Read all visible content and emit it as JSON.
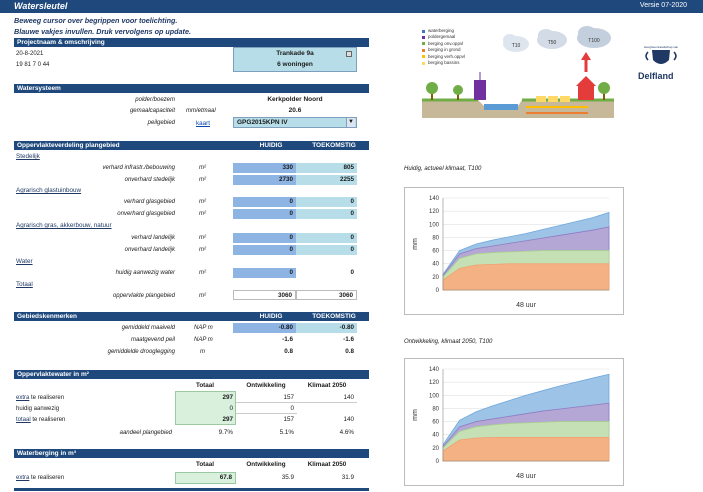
{
  "header": {
    "title": "Watersleutel",
    "version": "Versie 07-2020"
  },
  "instructions": [
    "Beweeg cursor over begrippen voor toelichting.",
    "Blauwe vakjes invullen. Druk vervolgens op update."
  ],
  "project": {
    "section": "Projectnaam & omschrijving",
    "date": "20-8-2021",
    "code": "19 81 7 0 44",
    "name": "Trankade 9a",
    "homes": "6 woningen"
  },
  "watersysteem": {
    "section": "Watersysteem",
    "polder_label": "polder/boezem",
    "polder_value": "Kerkpolder Noord",
    "gemaal_label": "gemaalcapaciteit",
    "gemaal_unit": "mm/etmaal",
    "gemaal_value": "20.6",
    "peil_label": "peilgebied",
    "kaart": "kaart",
    "peil_value": "GPG2015KPN IV"
  },
  "opp": {
    "section": "Oppervlakteverdeling plangebied",
    "col1": "HUIDIG",
    "col2": "TOEKOMSTIG",
    "stedelijk": "Stedelijk",
    "r1": {
      "label": "verhard infrastr./bebouwing",
      "unit": "m²",
      "h": "330",
      "t": "805"
    },
    "r2": {
      "label": "onverhard stedelijk",
      "unit": "m²",
      "h": "2730",
      "t": "2255"
    },
    "agr1": "Agrarisch glastuinbouw",
    "r3": {
      "label": "verhard glasgebied",
      "unit": "m²",
      "h": "0",
      "t": "0"
    },
    "r4": {
      "label": "onverhard glasgebied",
      "unit": "m²",
      "h": "0",
      "t": "0"
    },
    "agr2": "Agrarisch gras, akkerbouw, natuur",
    "r5": {
      "label": "verhard landelijk",
      "unit": "m²",
      "h": "0",
      "t": "0"
    },
    "r6": {
      "label": "onverhard landelijk",
      "unit": "m²",
      "h": "0",
      "t": "0"
    },
    "water": "Water",
    "r7": {
      "label": "huidig aanwezig water",
      "unit": "m²",
      "h": "0",
      "t": "0"
    },
    "totaal": "Totaal",
    "r8": {
      "label": "oppervlakte plangebied",
      "unit": "m²",
      "h": "3060",
      "t": "3060"
    }
  },
  "gebied": {
    "section": "Gebiedskenmerken",
    "col1": "HUIDIG",
    "col2": "TOEKOMSTIG",
    "r1": {
      "label": "gemiddeld maaiveld",
      "unit": "NAP m",
      "h": "-0.80",
      "t": "-0.80"
    },
    "r2": {
      "label": "maatgevend peil",
      "unit": "NAP m",
      "h": "-1.6",
      "t": "-1.6"
    },
    "r3": {
      "label": "gemiddelde drooglegging",
      "unit": "m",
      "h": "0.8",
      "t": "0.8"
    }
  },
  "ow": {
    "section": "Oppervlaktewater in m²",
    "col1": "Totaal",
    "col2": "Ontwikkeling",
    "col3": "Klimaat 2050",
    "r1": {
      "pre": "extra",
      "label": " te realiseren",
      "a": "297",
      "b": "157",
      "c": "140"
    },
    "r2": {
      "label": "huidig aanwezig",
      "a": "0",
      "b": "0"
    },
    "r3": {
      "pre": "totaal",
      "label": " te realiseren",
      "a": "297",
      "b": "157",
      "c": "140"
    },
    "r4": {
      "label": "aandeel plangebied",
      "a": "9.7%",
      "b": "5.1%",
      "c": "4.6%"
    }
  },
  "wb": {
    "section": "Waterberging in m³",
    "col1": "Totaal",
    "col2": "Ontwikkeling",
    "col3": "Klimaat 2050",
    "r1": {
      "pre": "extra",
      "label": " te realiseren",
      "a": "67.8",
      "b": "35.9",
      "c": "31.9"
    }
  },
  "diagram": {
    "legend": [
      {
        "label": "waterberging",
        "color": "#4472c4"
      },
      {
        "label": "poldergemaal",
        "color": "#7030a0"
      },
      {
        "label": "berging onv.oppvl",
        "color": "#70ad47"
      },
      {
        "label": "berging in grond",
        "color": "#ed7d31"
      },
      {
        "label": "berging verh.oppvl",
        "color": "#ffc000"
      },
      {
        "label": "berging bassins",
        "color": "#ffd966"
      }
    ],
    "clouds": [
      "T10",
      "T50",
      "T100"
    ],
    "logo_name": "Delfland",
    "logo_small": "Hoogheemraadschap van"
  },
  "charts": [
    {
      "caption": "Huidig, actueel klimaat, T100",
      "ylabel": "mm",
      "xlabel": "48 uur",
      "yticks": [
        "0",
        "20",
        "40",
        "60",
        "80",
        "100",
        "120",
        "140"
      ]
    },
    {
      "caption": "Ontwikkeling, klimaat 2050, T100",
      "ylabel": "mm",
      "xlabel": "48 uur",
      "yticks": [
        "0",
        "20",
        "40",
        "60",
        "80",
        "100",
        "120",
        "140"
      ]
    }
  ],
  "chart_data": [
    {
      "type": "area",
      "title": "Huidig, actueel klimaat, T100",
      "xlabel": "48 uur",
      "ylabel": "mm",
      "ylim": [
        0,
        140
      ],
      "x": [
        0,
        1,
        2,
        3,
        4,
        5,
        6,
        7,
        8,
        9,
        10
      ],
      "series": [
        {
          "name": "berging in grond",
          "values": [
            15,
            33,
            38,
            39,
            40,
            40,
            40,
            40,
            40,
            40,
            40
          ]
        },
        {
          "name": "berging onv.oppvl",
          "values": [
            20,
            48,
            55,
            57,
            58,
            59,
            60,
            60,
            60,
            60,
            60
          ]
        },
        {
          "name": "poldergemaal",
          "values": [
            22,
            55,
            63,
            67,
            71,
            75,
            79,
            83,
            87,
            91,
            96
          ]
        },
        {
          "name": "waterberging",
          "values": [
            24,
            60,
            70,
            76,
            81,
            86,
            92,
            98,
            104,
            110,
            118
          ]
        }
      ]
    },
    {
      "type": "area",
      "title": "Ontwikkeling, klimaat 2050, T100",
      "xlabel": "48 uur",
      "ylabel": "mm",
      "ylim": [
        0,
        140
      ],
      "x": [
        0,
        1,
        2,
        3,
        4,
        5,
        6,
        7,
        8,
        9,
        10
      ],
      "series": [
        {
          "name": "berging in grond",
          "values": [
            15,
            32,
            35,
            36,
            36,
            36,
            36,
            36,
            36,
            36,
            36
          ]
        },
        {
          "name": "berging onv.oppvl",
          "values": [
            20,
            45,
            52,
            55,
            57,
            58,
            59,
            60,
            60,
            60,
            60
          ]
        },
        {
          "name": "poldergemaal",
          "values": [
            22,
            52,
            60,
            64,
            68,
            72,
            76,
            79,
            82,
            85,
            88
          ]
        },
        {
          "name": "waterberging",
          "values": [
            25,
            62,
            75,
            84,
            92,
            100,
            107,
            114,
            120,
            126,
            132
          ]
        }
      ]
    }
  ]
}
